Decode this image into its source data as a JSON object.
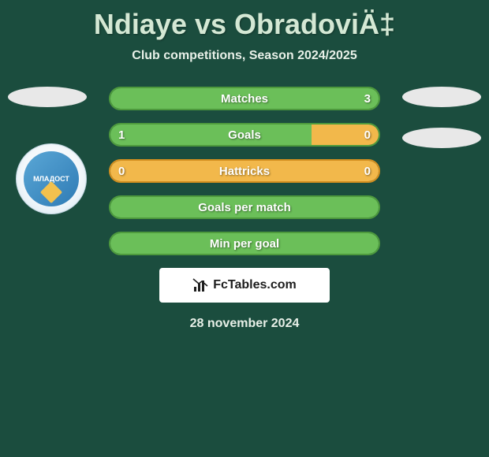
{
  "title": "Ndiaye vs ObradoviÄ‡",
  "subtitle": "Club competitions, Season 2024/2025",
  "date": "28 november 2024",
  "attribution": "FcTables.com",
  "colors": {
    "page_bg": "#1b4d3e",
    "fill_green": "#6bbf59",
    "fill_orange": "#f2b84b",
    "border_green": "#4e9a3d",
    "border_orange": "#d48f1f",
    "ellipse": "#e8e8e8",
    "text": "#ffffff",
    "attrib_bg": "#ffffff",
    "attrib_text": "#1d1d1d"
  },
  "stats": {
    "rows": [
      {
        "label": "Matches",
        "left_value": "",
        "right_value": "3",
        "left_pct": 0,
        "right_pct": 100,
        "left_color": "#6bbf59",
        "right_color": "#6bbf59",
        "border_color": "#4e9a3d",
        "show_left": false,
        "show_right": true
      },
      {
        "label": "Goals",
        "left_value": "1",
        "right_value": "0",
        "left_pct": 75,
        "right_pct": 25,
        "left_color": "#6bbf59",
        "right_color": "#f2b84b",
        "border_color": "#4e9a3d",
        "show_left": true,
        "show_right": true
      },
      {
        "label": "Hattricks",
        "left_value": "0",
        "right_value": "0",
        "left_pct": 100,
        "right_pct": 0,
        "left_color": "#f2b84b",
        "right_color": "#f2b84b",
        "border_color": "#d48f1f",
        "show_left": true,
        "show_right": true
      },
      {
        "label": "Goals per match",
        "left_value": "",
        "right_value": "",
        "left_pct": 100,
        "right_pct": 0,
        "left_color": "#6bbf59",
        "right_color": "#6bbf59",
        "border_color": "#4e9a3d",
        "show_left": false,
        "show_right": false
      },
      {
        "label": "Min per goal",
        "left_value": "",
        "right_value": "",
        "left_pct": 100,
        "right_pct": 0,
        "left_color": "#6bbf59",
        "right_color": "#6bbf59",
        "border_color": "#4e9a3d",
        "show_left": false,
        "show_right": false
      }
    ]
  },
  "crest_text": "МЛАДОСТ"
}
